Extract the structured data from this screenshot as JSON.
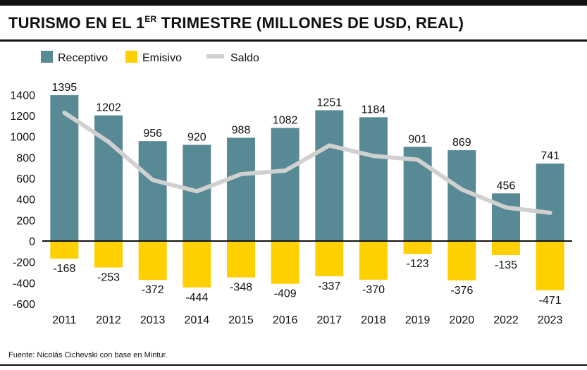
{
  "header": {
    "title_main": "TURISMO EN EL 1",
    "title_sup": "ER",
    "title_rest": " TRIMESTRE (MILLONES DE USD, REAL)"
  },
  "footer": {
    "source": "Fuente: Nicolás Cichevski con base en Mintur."
  },
  "colors": {
    "receptivo": "#588a96",
    "emisivo": "#ffd000",
    "saldo": "#d0d0d0",
    "axis": "#111111"
  },
  "chart_data": {
    "type": "bar",
    "title": "TURISMO EN EL 1ER TRIMESTRE (MILLONES DE USD, REAL)",
    "categories": [
      "2011",
      "2012",
      "2013",
      "2014",
      "2015",
      "2016",
      "2017",
      "2018",
      "2019",
      "2020",
      "2022",
      "2023"
    ],
    "series": [
      {
        "name": "Receptivo",
        "type": "bar",
        "values": [
          1395,
          1202,
          956,
          920,
          988,
          1082,
          1251,
          1184,
          901,
          869,
          456,
          741
        ]
      },
      {
        "name": "Emisivo",
        "type": "bar",
        "values": [
          -168,
          -253,
          -372,
          -444,
          -348,
          -409,
          -337,
          -370,
          -123,
          -376,
          -135,
          -471
        ]
      },
      {
        "name": "Saldo",
        "type": "line",
        "values": [
          1227,
          949,
          584,
          476,
          640,
          673,
          914,
          814,
          778,
          493,
          321,
          270
        ]
      }
    ],
    "yticks": [
      1400,
      1200,
      1000,
      800,
      600,
      400,
      200,
      0,
      -200,
      -400,
      -600
    ],
    "ylim": [
      -600,
      1400
    ],
    "legend": {
      "position": "top-left",
      "labels": [
        "Receptivo",
        "Emisivo",
        "Saldo"
      ]
    }
  }
}
